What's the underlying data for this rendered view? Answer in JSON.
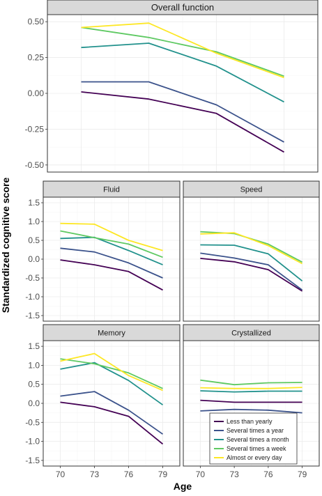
{
  "chart_data": {
    "type": "line",
    "xlabel": "Age",
    "ylabel": "Standardized cognitive score",
    "x": [
      70,
      73,
      76,
      79
    ],
    "legend": {
      "position": "inside-bottom-right",
      "entries": [
        {
          "name": "Less than yearly",
          "color": "#440154"
        },
        {
          "name": "Several times a year",
          "color": "#3b528b"
        },
        {
          "name": "Several times a month",
          "color": "#21918c"
        },
        {
          "name": "Several times a week",
          "color": "#5ec962"
        },
        {
          "name": "Almost or every day",
          "color": "#fde725"
        }
      ]
    },
    "panels": [
      {
        "title": "Overall function",
        "ylim": [
          -0.5,
          0.5
        ],
        "yticks": [
          "0.50",
          "0.25",
          "0.00",
          "-0.25",
          "-0.50"
        ],
        "ytick_values": [
          0.5,
          0.25,
          0.0,
          -0.25,
          -0.5
        ],
        "series": [
          {
            "name": "Less than yearly",
            "values": [
              0.01,
              -0.04,
              -0.14,
              -0.41
            ]
          },
          {
            "name": "Several times a year",
            "values": [
              0.08,
              0.08,
              -0.08,
              -0.34
            ]
          },
          {
            "name": "Several times a month",
            "values": [
              0.32,
              0.35,
              0.19,
              -0.06
            ]
          },
          {
            "name": "Several times a week",
            "values": [
              0.46,
              0.39,
              0.29,
              0.12
            ]
          },
          {
            "name": "Almost or every day",
            "values": [
              0.46,
              0.49,
              0.28,
              0.11
            ]
          }
        ]
      },
      {
        "title": "Fluid",
        "ylim": [
          -1.5,
          1.5
        ],
        "yticks": [
          "1.5",
          "1.0",
          "0.5",
          "0.0",
          "-0.5",
          "-1.0",
          "-1.5"
        ],
        "ytick_values": [
          1.5,
          1.0,
          0.5,
          0.0,
          -0.5,
          -1.0,
          -1.5
        ],
        "series": [
          {
            "name": "Less than yearly",
            "values": [
              -0.02,
              -0.15,
              -0.33,
              -0.82
            ]
          },
          {
            "name": "Several times a year",
            "values": [
              0.29,
              0.19,
              -0.1,
              -0.5
            ]
          },
          {
            "name": "Several times a month",
            "values": [
              0.55,
              0.58,
              0.23,
              -0.15
            ]
          },
          {
            "name": "Several times a week",
            "values": [
              0.75,
              0.57,
              0.4,
              0.05
            ]
          },
          {
            "name": "Almost or every day",
            "values": [
              0.95,
              0.93,
              0.5,
              0.23
            ]
          }
        ]
      },
      {
        "title": "Speed",
        "ylim": [
          -1.5,
          1.5
        ],
        "yticks": [
          "1.5",
          "1.0",
          "0.5",
          "0.0",
          "-0.5",
          "-1.0",
          "-1.5"
        ],
        "ytick_values": [
          1.5,
          1.0,
          0.5,
          0.0,
          -0.5,
          -1.0,
          -1.5
        ],
        "series": [
          {
            "name": "Less than yearly",
            "values": [
              0.02,
              -0.07,
              -0.28,
              -0.85
            ]
          },
          {
            "name": "Several times a year",
            "values": [
              0.16,
              0.03,
              -0.15,
              -0.82
            ]
          },
          {
            "name": "Several times a month",
            "values": [
              0.38,
              0.37,
              0.14,
              -0.58
            ]
          },
          {
            "name": "Several times a week",
            "values": [
              0.73,
              0.68,
              0.4,
              -0.08
            ]
          },
          {
            "name": "Almost or every day",
            "values": [
              0.67,
              0.7,
              0.36,
              -0.12
            ]
          }
        ]
      },
      {
        "title": "Memory",
        "ylim": [
          -1.5,
          1.5
        ],
        "yticks": [
          "1.5",
          "1.0",
          "0.5",
          "0.0",
          "-0.5",
          "-1.0",
          "-1.5"
        ],
        "ytick_values": [
          1.5,
          1.0,
          0.5,
          0.0,
          -0.5,
          -1.0,
          -1.5
        ],
        "series": [
          {
            "name": "Less than yearly",
            "values": [
              0.03,
              -0.09,
              -0.34,
              -1.07
            ]
          },
          {
            "name": "Several times a year",
            "values": [
              0.19,
              0.31,
              -0.18,
              -0.81
            ]
          },
          {
            "name": "Several times a month",
            "values": [
              0.9,
              1.07,
              0.6,
              -0.04
            ]
          },
          {
            "name": "Several times a week",
            "values": [
              1.17,
              1.04,
              0.8,
              0.39
            ]
          },
          {
            "name": "Almost or every day",
            "values": [
              1.11,
              1.31,
              0.73,
              0.34
            ]
          }
        ]
      },
      {
        "title": "Crystallized",
        "ylim": [
          -1.5,
          1.5
        ],
        "yticks": [
          "1.5",
          "1.0",
          "0.5",
          "0.0",
          "-0.5",
          "-1.0",
          "-1.5"
        ],
        "ytick_values": [
          1.5,
          1.0,
          0.5,
          0.0,
          -0.5,
          -1.0,
          -1.5
        ],
        "series": [
          {
            "name": "Less than yearly",
            "values": [
              0.08,
              0.03,
              0.03,
              0.03
            ]
          },
          {
            "name": "Several times a year",
            "values": [
              -0.2,
              -0.16,
              -0.18,
              -0.25
            ]
          },
          {
            "name": "Several times a month",
            "values": [
              0.33,
              0.3,
              0.32,
              0.32
            ]
          },
          {
            "name": "Several times a week",
            "values": [
              0.61,
              0.49,
              0.54,
              0.55
            ]
          },
          {
            "name": "Almost or every day",
            "values": [
              0.41,
              0.39,
              0.39,
              0.42
            ]
          }
        ]
      }
    ]
  }
}
